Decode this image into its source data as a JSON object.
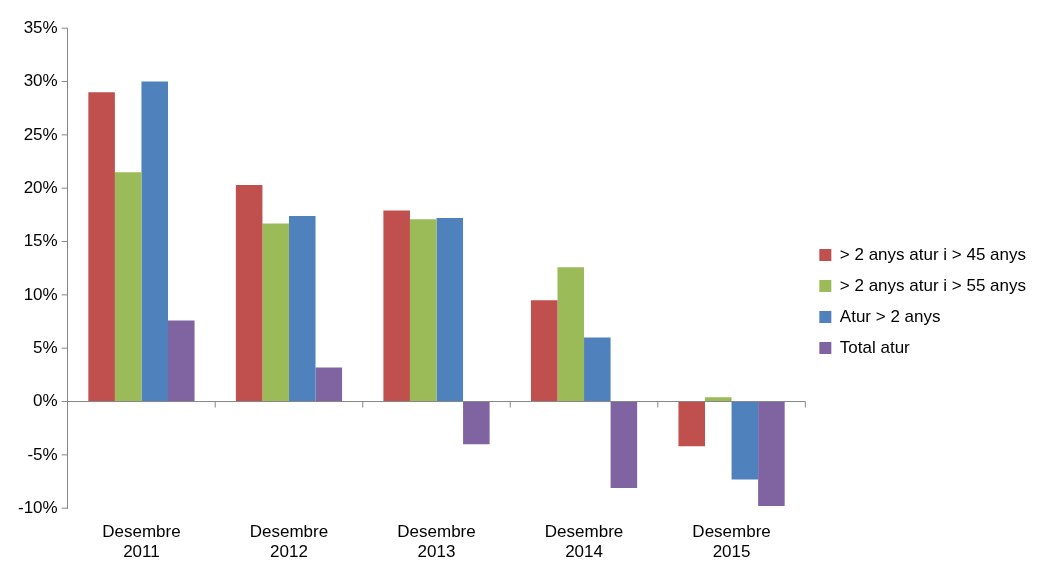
{
  "chart_data": {
    "type": "bar",
    "categories": [
      "Desembre 2011",
      "Desembre 2012",
      "Desembre 2013",
      "Desembre 2014",
      "Desembre 2015"
    ],
    "series": [
      {
        "name": "> 2 anys atur i > 45 anys",
        "color": "#c0504d",
        "values": [
          29,
          20.3,
          17.9,
          9.5,
          -4.2
        ]
      },
      {
        "name": "> 2 anys atur i > 55 anys",
        "color": "#9bbb59",
        "values": [
          21.5,
          16.7,
          17.1,
          12.6,
          0.4
        ]
      },
      {
        "name": "Atur > 2 anys",
        "color": "#4f81bd",
        "values": [
          30,
          17.4,
          17.2,
          6.0,
          -7.3
        ]
      },
      {
        "name": "Total atur",
        "color": "#8064a2",
        "values": [
          7.6,
          3.2,
          -4.0,
          -8.1,
          -9.8
        ]
      }
    ],
    "ylim": [
      -10,
      35
    ],
    "yticks": [
      {
        "value": -10,
        "label": "-10%"
      },
      {
        "value": -5,
        "label": "-5%"
      },
      {
        "value": 0,
        "label": "0%"
      },
      {
        "value": 5,
        "label": "5%"
      },
      {
        "value": 10,
        "label": "10%"
      },
      {
        "value": 15,
        "label": "15%"
      },
      {
        "value": 20,
        "label": "20%"
      },
      {
        "value": 25,
        "label": "25%"
      },
      {
        "value": 30,
        "label": "30%"
      },
      {
        "value": 35,
        "label": "35%"
      }
    ],
    "legend": "right"
  }
}
